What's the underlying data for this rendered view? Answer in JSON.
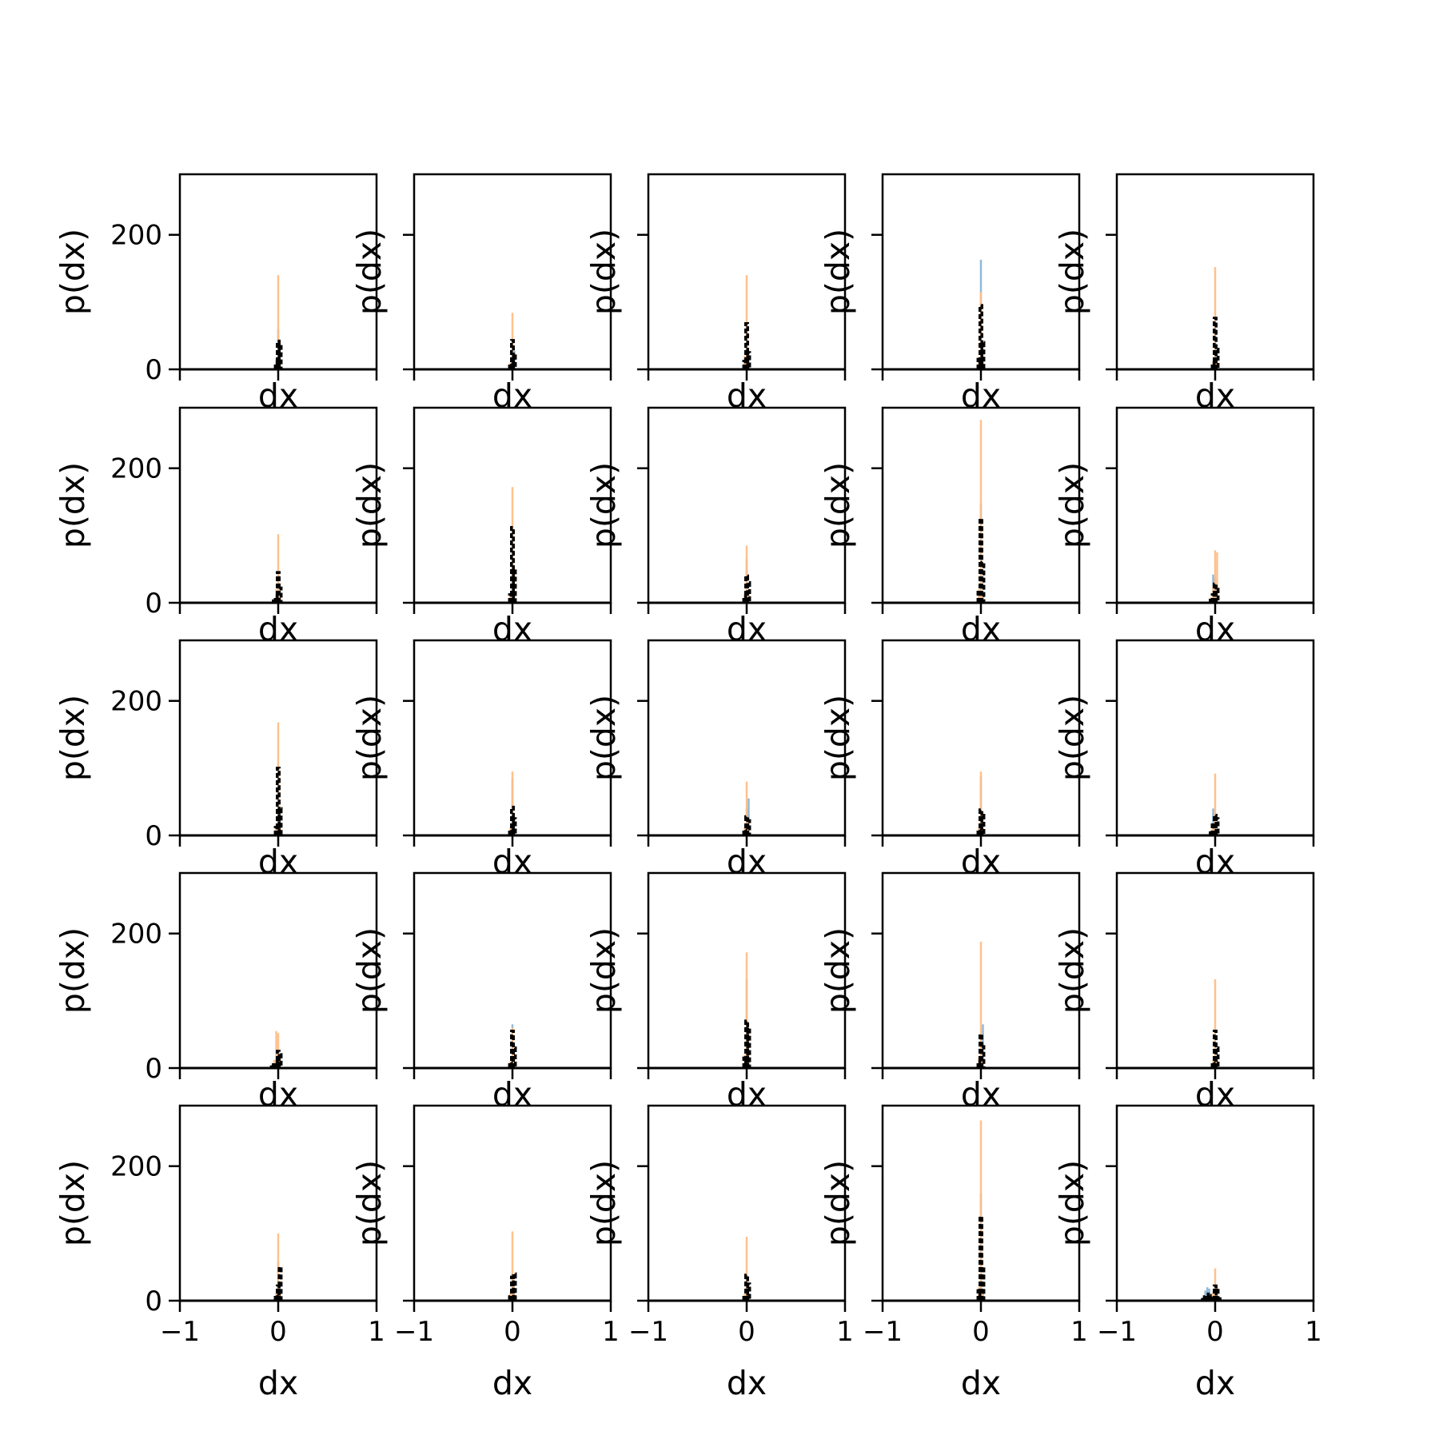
{
  "figure": {
    "grid_rows": 5,
    "grid_cols": 5,
    "sharex": true,
    "sharey": true
  },
  "axes": {
    "xlabel": "dx",
    "ylabel": "p(dx)",
    "xlim": [
      -1,
      1
    ],
    "ylim": [
      0,
      290
    ],
    "xticks": [
      -1,
      0,
      1
    ],
    "xtick_labels": [
      "−1",
      "0",
      "1"
    ],
    "yticks": [
      0,
      200
    ],
    "ytick_labels": [
      "0",
      "200"
    ],
    "grid": false,
    "legend": "none"
  },
  "colors": {
    "series_a": "#8ab5d7",
    "series_b": "#ffbe86",
    "series_c": "#000000"
  },
  "chart_data": {
    "type": "bar",
    "series_names": [
      "series_a",
      "series_b",
      "series_c"
    ],
    "subplots": [
      {
        "row": 0,
        "col": 0,
        "x": [
          -0.02,
          0.0,
          0.02
        ],
        "series": [
          {
            "values": [
              8,
              60,
              5
            ]
          },
          {
            "values": [
              15,
              140,
              12
            ]
          },
          {
            "values": [
              10,
              42,
              38
            ]
          }
        ]
      },
      {
        "row": 0,
        "col": 1,
        "x": [
          -0.02,
          0.0,
          0.02
        ],
        "series": [
          {
            "values": [
              6,
              30,
              28
            ]
          },
          {
            "values": [
              10,
              84,
              12
            ]
          },
          {
            "values": [
              8,
              43,
              20
            ]
          }
        ]
      },
      {
        "row": 0,
        "col": 2,
        "x": [
          -0.02,
          0.0,
          0.02
        ],
        "series": [
          {
            "values": [
              10,
              65,
              8
            ]
          },
          {
            "values": [
              20,
              140,
              15
            ]
          },
          {
            "values": [
              12,
              68,
              25
            ]
          }
        ]
      },
      {
        "row": 0,
        "col": 3,
        "x": [
          -0.02,
          0.0,
          0.02
        ],
        "series": [
          {
            "values": [
              12,
              163,
              10
            ]
          },
          {
            "values": [
              18,
              115,
              14
            ]
          },
          {
            "values": [
              15,
              95,
              40
            ]
          }
        ]
      },
      {
        "row": 0,
        "col": 4,
        "x": [
          -0.02,
          0.0,
          0.02
        ],
        "series": [
          {
            "values": [
              8,
              60,
              7
            ]
          },
          {
            "values": [
              12,
              152,
              10
            ]
          },
          {
            "values": [
              10,
              76,
              30
            ]
          }
        ]
      },
      {
        "row": 1,
        "col": 0,
        "x": [
          -0.04,
          -0.02,
          0.0,
          0.02
        ],
        "series": [
          {
            "values": [
              4,
              12,
              45,
              10
            ]
          },
          {
            "values": [
              5,
              20,
              102,
              12
            ]
          },
          {
            "values": [
              3,
              10,
              45,
              22
            ]
          }
        ]
      },
      {
        "row": 1,
        "col": 1,
        "x": [
          -0.02,
          0.0,
          0.02
        ],
        "series": [
          {
            "values": [
              10,
              110,
              8
            ]
          },
          {
            "values": [
              15,
              172,
              14
            ]
          },
          {
            "values": [
              12,
              112,
              50
            ]
          }
        ]
      },
      {
        "row": 1,
        "col": 2,
        "x": [
          -0.02,
          0.0,
          0.02
        ],
        "series": [
          {
            "values": [
              10,
              65,
              8
            ]
          },
          {
            "values": [
              15,
              85,
              12
            ]
          },
          {
            "values": [
              10,
              40,
              30
            ]
          }
        ]
      },
      {
        "row": 1,
        "col": 3,
        "x": [
          -0.02,
          0.0,
          0.02
        ],
        "series": [
          {
            "values": [
              15,
              148,
              10
            ]
          },
          {
            "values": [
              20,
              272,
              15
            ]
          },
          {
            "values": [
              18,
              125,
              60
            ]
          }
        ]
      },
      {
        "row": 1,
        "col": 4,
        "x": [
          -0.04,
          -0.02,
          0.0,
          0.02
        ],
        "series": [
          {
            "values": [
              5,
              42,
              38,
              10
            ]
          },
          {
            "values": [
              8,
              25,
              78,
              75
            ]
          },
          {
            "values": [
              4,
              12,
              28,
              20
            ]
          }
        ]
      },
      {
        "row": 2,
        "col": 0,
        "x": [
          -0.02,
          0.0,
          0.02
        ],
        "series": [
          {
            "values": [
              10,
              100,
              8
            ]
          },
          {
            "values": [
              15,
              168,
              12
            ]
          },
          {
            "values": [
              12,
              100,
              40
            ]
          }
        ]
      },
      {
        "row": 2,
        "col": 1,
        "x": [
          -0.02,
          0.0,
          0.02
        ],
        "series": [
          {
            "values": [
              10,
              85,
              8
            ]
          },
          {
            "values": [
              12,
              95,
              10
            ]
          },
          {
            "values": [
              8,
              42,
              25
            ]
          }
        ]
      },
      {
        "row": 2,
        "col": 2,
        "x": [
          -0.02,
          0.0,
          0.02
        ],
        "series": [
          {
            "values": [
              8,
              40,
              55
            ]
          },
          {
            "values": [
              12,
              80,
              20
            ]
          },
          {
            "values": [
              8,
              28,
              22
            ]
          }
        ]
      },
      {
        "row": 2,
        "col": 3,
        "x": [
          -0.02,
          0.0,
          0.02
        ],
        "series": [
          {
            "values": [
              10,
              88,
              8
            ]
          },
          {
            "values": [
              12,
              95,
              10
            ]
          },
          {
            "values": [
              8,
              38,
              30
            ]
          }
        ]
      },
      {
        "row": 2,
        "col": 4,
        "x": [
          -0.04,
          -0.02,
          0.0,
          0.02
        ],
        "series": [
          {
            "values": [
              6,
              40,
              12,
              8
            ]
          },
          {
            "values": [
              8,
              15,
              92,
              10
            ]
          },
          {
            "values": [
              4,
              18,
              30,
              25
            ]
          }
        ]
      },
      {
        "row": 3,
        "col": 0,
        "x": [
          -0.06,
          -0.04,
          -0.02,
          0.0,
          0.02
        ],
        "series": [
          {
            "values": [
              3,
              8,
              15,
              28,
              8
            ]
          },
          {
            "values": [
              4,
              12,
              55,
              52,
              10
            ]
          },
          {
            "values": [
              2,
              5,
              10,
              25,
              20
            ]
          }
        ]
      },
      {
        "row": 3,
        "col": 1,
        "x": [
          -0.02,
          0.0,
          0.02
        ],
        "series": [
          {
            "values": [
              8,
              65,
              8
            ]
          },
          {
            "values": [
              10,
              60,
              10
            ]
          },
          {
            "values": [
              8,
              55,
              30
            ]
          }
        ]
      },
      {
        "row": 3,
        "col": 2,
        "x": [
          -0.02,
          0.0,
          0.02
        ],
        "series": [
          {
            "values": [
              15,
              132,
              10
            ]
          },
          {
            "values": [
              20,
              172,
              15
            ]
          },
          {
            "values": [
              15,
              70,
              60
            ]
          }
        ]
      },
      {
        "row": 3,
        "col": 3,
        "x": [
          -0.02,
          0.0,
          0.02
        ],
        "series": [
          {
            "values": [
              10,
              40,
              65
            ]
          },
          {
            "values": [
              15,
              188,
              12
            ]
          },
          {
            "values": [
              10,
              50,
              32
            ]
          }
        ]
      },
      {
        "row": 3,
        "col": 4,
        "x": [
          -0.02,
          0.0,
          0.02
        ],
        "series": [
          {
            "values": [
              8,
              40,
              10
            ]
          },
          {
            "values": [
              12,
              132,
              12
            ]
          },
          {
            "values": [
              8,
              55,
              30
            ]
          }
        ]
      },
      {
        "row": 4,
        "col": 0,
        "x": [
          -0.02,
          0.0,
          0.02
        ],
        "series": [
          {
            "values": [
              8,
              58,
              8
            ]
          },
          {
            "values": [
              12,
              100,
              10
            ]
          },
          {
            "values": [
              8,
              22,
              50
            ]
          }
        ]
      },
      {
        "row": 4,
        "col": 1,
        "x": [
          -0.02,
          0.0,
          0.02
        ],
        "series": [
          {
            "values": [
              8,
              40,
              8
            ]
          },
          {
            "values": [
              12,
              103,
              10
            ]
          },
          {
            "values": [
              6,
              35,
              40
            ]
          }
        ]
      },
      {
        "row": 4,
        "col": 2,
        "x": [
          -0.02,
          0.0,
          0.02
        ],
        "series": [
          {
            "values": [
              6,
              30,
              6
            ]
          },
          {
            "values": [
              10,
              95,
              8
            ]
          },
          {
            "values": [
              5,
              38,
              25
            ]
          }
        ]
      },
      {
        "row": 4,
        "col": 3,
        "x": [
          -0.02,
          0.0,
          0.02
        ],
        "series": [
          {
            "values": [
              15,
              160,
              10
            ]
          },
          {
            "values": [
              20,
              268,
              15
            ]
          },
          {
            "values": [
              15,
              125,
              50
            ]
          }
        ]
      },
      {
        "row": 4,
        "col": 4,
        "x": [
          -0.12,
          -0.1,
          -0.08,
          -0.06,
          -0.04,
          -0.02,
          0.0,
          0.02,
          0.04
        ],
        "series": [
          {
            "values": [
              5,
              15,
              20,
              18,
              10,
              6,
              12,
              8,
              3
            ]
          },
          {
            "values": [
              2,
              4,
              6,
              8,
              10,
              12,
              48,
              20,
              5
            ]
          },
          {
            "values": [
              2,
              6,
              10,
              8,
              5,
              4,
              22,
              18,
              3
            ]
          }
        ]
      }
    ]
  }
}
